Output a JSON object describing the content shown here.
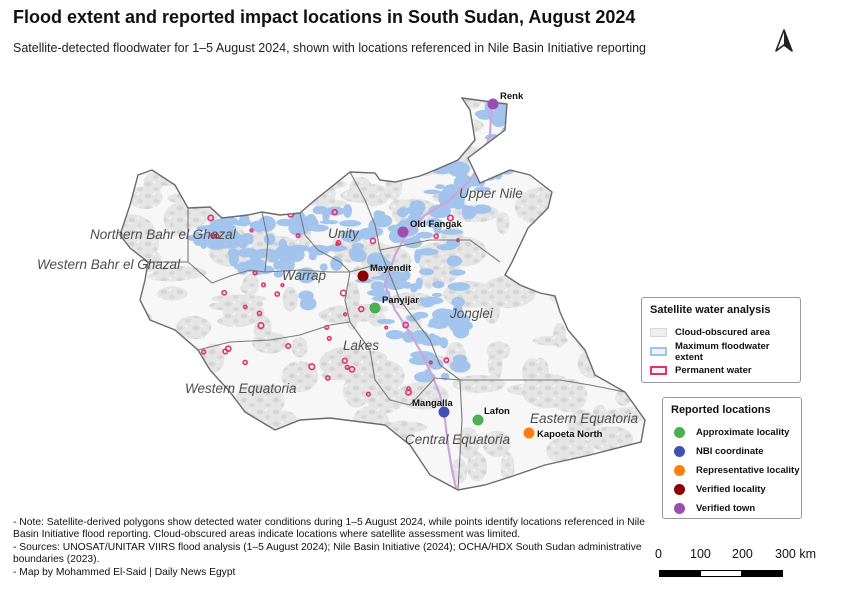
{
  "title": "Flood extent and reported impact locations in South Sudan, August 2024",
  "subtitle": "Satellite-detected floodwater for 1–5 August 2024, shown with locations referenced in Nile Basin Initiative reporting",
  "colors": {
    "cloud": "#e0e0e0",
    "flood": "#9fc2ec",
    "permanent": "#e0306e",
    "border": "#7a7a7a",
    "approximate": "#4caf50",
    "nbi": "#3f51b5",
    "representative": "#ff7f0e",
    "verified_locality": "#8b0000",
    "verified_town": "#9c4db0"
  },
  "states": [
    {
      "name": "Upper Nile"
    },
    {
      "name": "Unity"
    },
    {
      "name": "Northern Bahr el Ghazal"
    },
    {
      "name": "Western Bahr el Ghazal"
    },
    {
      "name": "Warrap"
    },
    {
      "name": "Jonglei"
    },
    {
      "name": "Lakes"
    },
    {
      "name": "Western Equatoria"
    },
    {
      "name": "Eastern Equatoria"
    },
    {
      "name": "Central Equatoria"
    }
  ],
  "locations": [
    {
      "name": "Renk",
      "category": "verified_town"
    },
    {
      "name": "Old Fangak",
      "category": "verified_town"
    },
    {
      "name": "Mayendit",
      "category": "verified_locality"
    },
    {
      "name": "Panyijar",
      "category": "approximate"
    },
    {
      "name": "Mangalla",
      "category": "nbi"
    },
    {
      "name": "Lafon",
      "category": "approximate"
    },
    {
      "name": "Kapoeta North",
      "category": "representative"
    }
  ],
  "legend_water": {
    "title": "Satellite water analysis",
    "items": [
      {
        "label": "Cloud-obscured area",
        "key": "cloud"
      },
      {
        "label": "Maximum floodwater extent",
        "key": "flood"
      },
      {
        "label": "Permanent water",
        "key": "permanent"
      }
    ]
  },
  "legend_locations": {
    "title": "Reported locations",
    "items": [
      {
        "label": "Approximate locality",
        "key": "approximate"
      },
      {
        "label": "NBI coordinate",
        "key": "nbi"
      },
      {
        "label": "Representative locality",
        "key": "representative"
      },
      {
        "label": "Verified locality",
        "key": "verified_locality"
      },
      {
        "label": "Verified town",
        "key": "verified_town"
      }
    ]
  },
  "notes": [
    "- Note: Satellite-derived polygons show detected water conditions during 1–5 August 2024, while points identify locations referenced in Nile Basin Initiative flood reporting. Cloud-obscured areas indicate locations where satellite assessment was limited.",
    "- Sources: UNOSAT/UNITAR VIIRS flood analysis (1–5 August 2024); Nile Basin Initiative (2024); OCHA/HDX South Sudan administrative boundaries (2023).",
    "- Map by Mohammed El-Said | Daily News Egypt"
  ],
  "scale": {
    "labels": [
      "0",
      "100",
      "200",
      "300 km"
    ]
  }
}
